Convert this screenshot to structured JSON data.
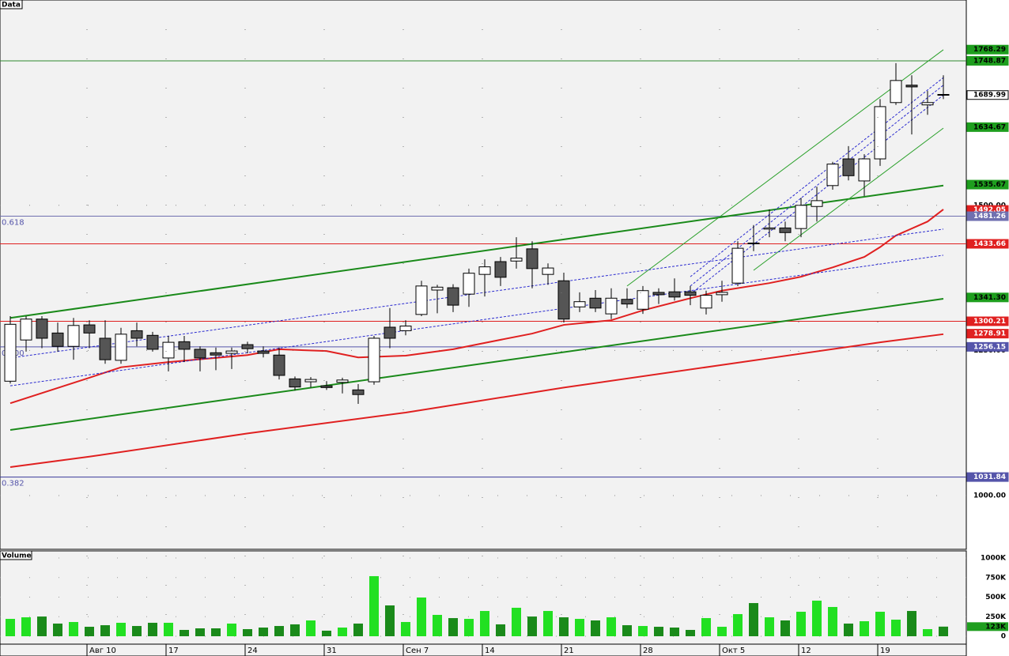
{
  "chart_data": [
    {
      "type": "candlestick",
      "title": "Data",
      "xlim": [
        -0.65,
        60.45
      ],
      "ylim": [
        907.4,
        1853.7
      ],
      "yticks": [
        {
          "value": 1000,
          "label": "1000.00"
        },
        {
          "value": 1250,
          "label": "1250.00"
        },
        {
          "value": 1500,
          "label": "1500.00"
        }
      ],
      "grid": true,
      "up_color": "#ffffff",
      "down_color": "#555555",
      "open": [
        1197,
        1268,
        1304,
        1280,
        1257,
        1294,
        1271,
        1233,
        1284,
        1276,
        1237,
        1265,
        1252,
        1246,
        1245,
        1260,
        1249,
        1242,
        1201,
        1196,
        1189,
        1195,
        1182,
        1196,
        1290,
        1284,
        1312,
        1354,
        1358,
        1347,
        1381,
        1403,
        1404,
        1425,
        1381,
        1370,
        1325,
        1340,
        1313,
        1338,
        1321,
        1350,
        1351,
        1351,
        1323,
        1346,
        1366,
        1435,
        1459,
        1461,
        1460,
        1498,
        1534,
        1580,
        1542,
        1580,
        1677,
        1707,
        1673,
        1691
      ],
      "high": [
        1309,
        1309,
        1309,
        1298,
        1306,
        1302,
        1302,
        1289,
        1298,
        1282,
        1275,
        1275,
        1257,
        1255,
        1255,
        1265,
        1257,
        1255,
        1205,
        1204,
        1197,
        1203,
        1192,
        1275,
        1323,
        1302,
        1370,
        1363,
        1364,
        1391,
        1407,
        1411,
        1445,
        1438,
        1400,
        1384,
        1350,
        1354,
        1357,
        1357,
        1361,
        1357,
        1374,
        1361,
        1353,
        1370,
        1438,
        1466,
        1493,
        1472,
        1513,
        1532,
        1575,
        1602,
        1588,
        1683,
        1745,
        1724,
        1697,
        1724
      ],
      "low": [
        1193,
        1248,
        1254,
        1248,
        1234,
        1254,
        1227,
        1227,
        1257,
        1248,
        1214,
        1230,
        1214,
        1216,
        1218,
        1245,
        1238,
        1200,
        1181,
        1186,
        1182,
        1176,
        1158,
        1191,
        1254,
        1276,
        1309,
        1314,
        1316,
        1325,
        1343,
        1361,
        1391,
        1357,
        1363,
        1298,
        1316,
        1316,
        1304,
        1323,
        1313,
        1330,
        1336,
        1328,
        1312,
        1334,
        1361,
        1421,
        1445,
        1438,
        1445,
        1472,
        1527,
        1543,
        1516,
        1568,
        1673,
        1622,
        1656,
        1683
      ],
      "close": [
        1295,
        1304,
        1271,
        1257,
        1293,
        1280,
        1234,
        1278,
        1271,
        1252,
        1264,
        1252,
        1237,
        1242,
        1249,
        1253,
        1245,
        1207,
        1187,
        1200,
        1186,
        1199,
        1174,
        1271,
        1271,
        1292,
        1361,
        1359,
        1328,
        1383,
        1394,
        1376,
        1409,
        1391,
        1392,
        1304,
        1334,
        1323,
        1340,
        1330,
        1353,
        1346,
        1342,
        1345,
        1345,
        1350,
        1426,
        1434,
        1461,
        1453,
        1500,
        1508,
        1571,
        1551,
        1580,
        1670,
        1715,
        1704,
        1677,
        1689.99
      ],
      "lines": [
        {
          "color": "#e02020",
          "width": 2,
          "points": [
            [
              0,
              1159
            ],
            [
              5,
              1203
            ],
            [
              7,
              1221
            ],
            [
              10,
              1230
            ],
            [
              15,
              1242
            ],
            [
              17,
              1252
            ],
            [
              20,
              1249
            ],
            [
              22,
              1238
            ],
            [
              25,
              1241
            ],
            [
              28,
              1252
            ],
            [
              30,
              1263
            ],
            [
              33,
              1279
            ],
            [
              35,
              1294
            ],
            [
              38,
              1302
            ],
            [
              40,
              1319
            ],
            [
              43,
              1340
            ],
            [
              45,
              1353
            ],
            [
              48,
              1366
            ],
            [
              50,
              1377
            ],
            [
              52,
              1393
            ],
            [
              54,
              1411
            ],
            [
              55,
              1428
            ],
            [
              56,
              1448
            ],
            [
              58,
              1472
            ],
            [
              59,
              1493
            ]
          ]
        },
        {
          "color": "#e02020",
          "width": 2,
          "points": [
            [
              0,
              1049
            ],
            [
              5,
              1067
            ],
            [
              15,
              1107
            ],
            [
              25,
              1143
            ],
            [
              35,
              1186
            ],
            [
              45,
              1225
            ],
            [
              55,
              1264
            ],
            [
              59,
              1278
            ]
          ]
        },
        {
          "color": "#1a8a1a",
          "width": 2,
          "points": [
            [
              0,
              1306
            ],
            [
              59,
              1534
            ]
          ]
        },
        {
          "color": "#1a8a1a",
          "width": 2,
          "points": [
            [
              0,
              1113
            ],
            [
              59,
              1339
            ]
          ]
        },
        {
          "color": "#2aa02a",
          "width": 1,
          "points": [
            [
              39,
              1361
            ],
            [
              59,
              1768
            ]
          ]
        },
        {
          "color": "#2aa02a",
          "width": 1,
          "points": [
            [
              47,
              1388
            ],
            [
              59,
              1633
            ]
          ]
        },
        {
          "color": "#2b2bd0",
          "width": 1,
          "dash": "3 2",
          "points": [
            [
              0,
              1237
            ],
            [
              59,
              1459
            ]
          ]
        },
        {
          "color": "#2b2bd0",
          "width": 1,
          "dash": "3 2",
          "points": [
            [
              0,
              1189
            ],
            [
              59,
              1414
            ]
          ]
        },
        {
          "color": "#2b2bd0",
          "width": 1,
          "dash": "3 2",
          "points": [
            [
              43,
              1377
            ],
            [
              59,
              1720
            ]
          ]
        },
        {
          "color": "#2b2bd0",
          "width": 1,
          "dash": "3 2",
          "points": [
            [
              43,
              1361
            ],
            [
              59,
              1707
            ]
          ]
        },
        {
          "color": "#2b2bd0",
          "width": 1,
          "dash": "3 2",
          "points": [
            [
              43,
              1347
            ],
            [
              59,
              1690
            ]
          ]
        }
      ],
      "price_tags": [
        {
          "value": 1768.29,
          "label": "1768.29",
          "bg": "#1e9e1e",
          "fg": "#000000"
        },
        {
          "value": 1748.87,
          "label": "1748.87",
          "bg": "#1e9e1e",
          "fg": "#000000",
          "line": "#2e8b2e"
        },
        {
          "value": 1689.99,
          "label": "1689.99",
          "bg": "#ffffff",
          "fg": "#000000"
        },
        {
          "value": 1634.67,
          "label": "1634.67",
          "bg": "#1e9e1e",
          "fg": "#000000"
        },
        {
          "value": 1535.67,
          "label": "1535.67",
          "bg": "#1e9e1e",
          "fg": "#000000"
        },
        {
          "value": 1492.05,
          "label": "1492.05",
          "bg": "#e02020",
          "fg": "#ffffff"
        },
        {
          "value": 1481.26,
          "label": "1481.26",
          "bg": "#7070b0",
          "fg": "#ffffff",
          "line": "#7070b0",
          "fib": "0.618"
        },
        {
          "value": 1433.66,
          "label": "1433.66",
          "bg": "#e02020",
          "fg": "#ffffff",
          "line": "#e02020"
        },
        {
          "value": 1341.3,
          "label": "1341.30",
          "bg": "#1e9e1e",
          "fg": "#000000"
        },
        {
          "value": 1300.21,
          "label": "1300.21",
          "bg": "#e02020",
          "fg": "#ffffff",
          "line": "#e02020"
        },
        {
          "value": 1278.91,
          "label": "1278.91",
          "bg": "#e02020",
          "fg": "#ffffff"
        },
        {
          "value": 1256.15,
          "label": "1256.15",
          "bg": "#5555aa",
          "fg": "#ffffff",
          "line": "#5555aa",
          "fib": "0.500"
        },
        {
          "value": 1031.84,
          "label": "1031.84",
          "bg": "#5555aa",
          "fg": "#ffffff",
          "line": "#3a3a9a",
          "fib": "0.382"
        }
      ]
    },
    {
      "type": "bar",
      "title": "Volume",
      "xlim": [
        -0.65,
        60.45
      ],
      "ylim": [
        -101000,
        1091000
      ],
      "yticks": [
        {
          "value": 0,
          "label": "0"
        },
        {
          "value": 250000,
          "label": "250K"
        },
        {
          "value": 500000,
          "label": "500K"
        },
        {
          "value": 750000,
          "label": "750K"
        },
        {
          "value": 1000000,
          "label": "1000K"
        }
      ],
      "up_color": "#22e022",
      "down_color": "#1a8a1a",
      "categories": [
        null,
        null,
        null,
        null,
        null,
        "Авг 10",
        null,
        null,
        null,
        null,
        "17",
        null,
        null,
        null,
        null,
        "24",
        null,
        null,
        null,
        null,
        "31",
        null,
        null,
        null,
        null,
        "Сен 7",
        null,
        null,
        null,
        null,
        "14",
        null,
        null,
        null,
        null,
        "21",
        null,
        null,
        null,
        null,
        "28",
        null,
        null,
        null,
        null,
        "Окт 5",
        null,
        null,
        null,
        null,
        "12",
        null,
        null,
        null,
        null,
        "19",
        null,
        null,
        null,
        null
      ],
      "values": [
        222000,
        242000,
        252000,
        162000,
        182000,
        121000,
        141000,
        172000,
        131000,
        172000,
        172000,
        81000,
        101000,
        101000,
        162000,
        91000,
        111000,
        131000,
        152000,
        202000,
        71000,
        111000,
        162000,
        768000,
        394000,
        182000,
        495000,
        273000,
        232000,
        222000,
        323000,
        152000,
        364000,
        252000,
        323000,
        242000,
        222000,
        202000,
        242000,
        141000,
        131000,
        121000,
        111000,
        81000,
        232000,
        121000,
        283000,
        424000,
        242000,
        202000,
        313000,
        455000,
        374000,
        162000,
        192000,
        313000,
        212000,
        323000,
        91000,
        123000
      ],
      "tag": {
        "value": 123000,
        "label": "123K",
        "bg": "#1e9e1e",
        "fg": "#000000"
      }
    }
  ]
}
